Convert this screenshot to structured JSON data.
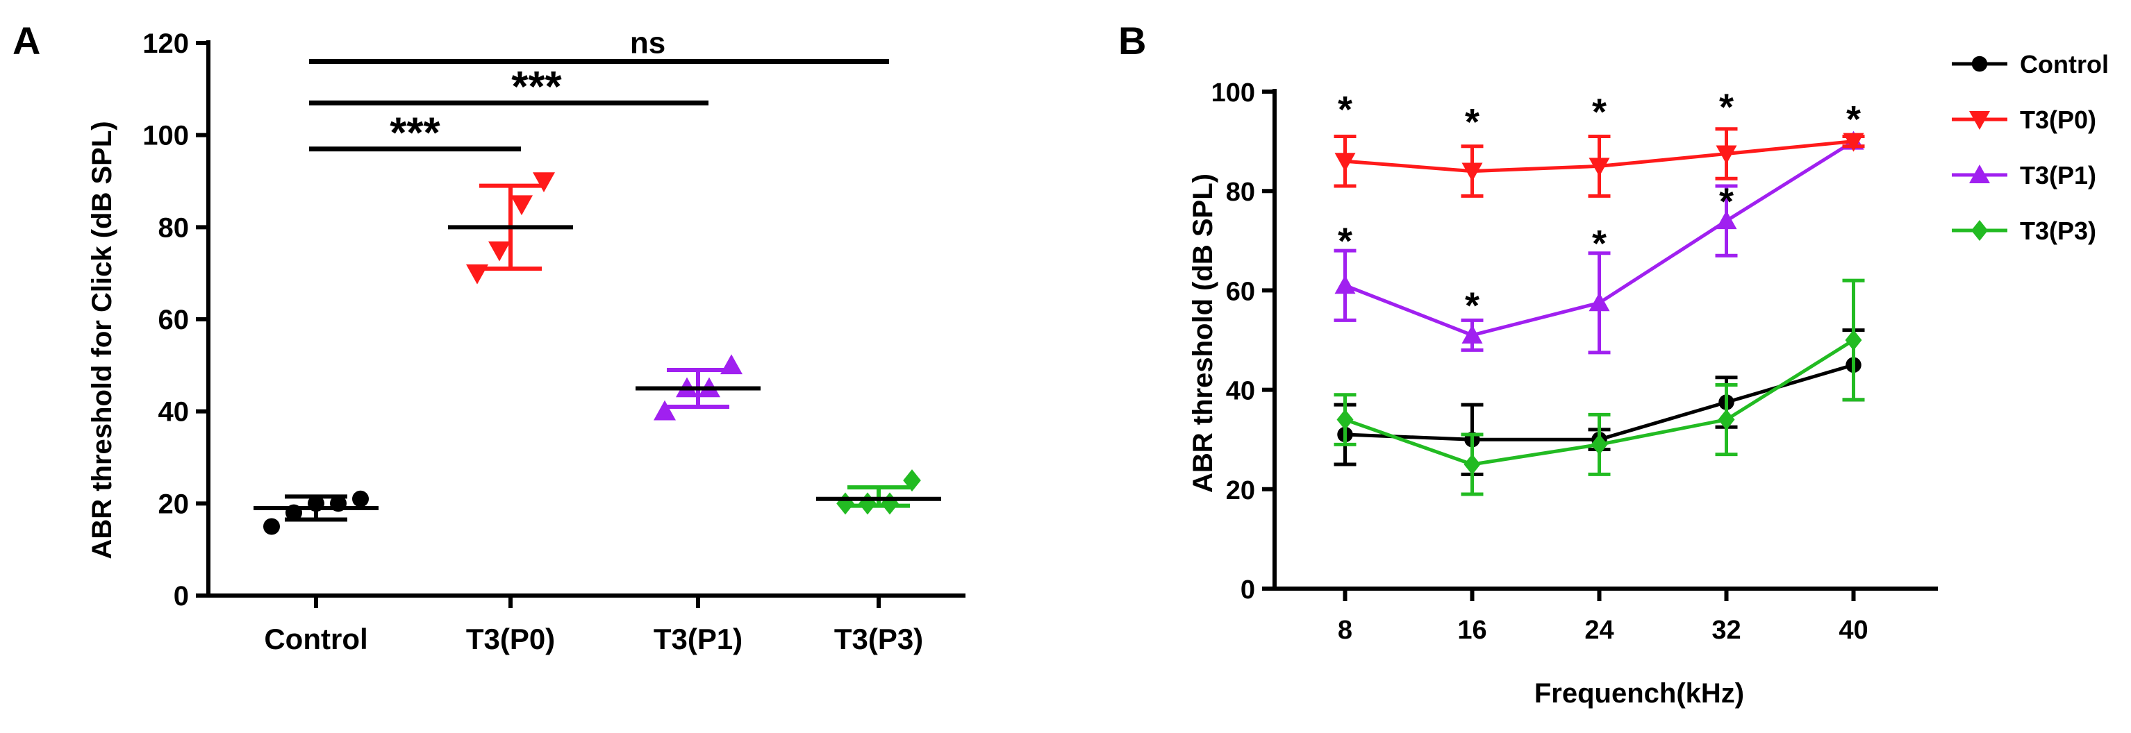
{
  "colors": {
    "control": "#000000",
    "p0": "#ff1a1a",
    "p1": "#a020f0",
    "p3": "#22bb22"
  },
  "chart_data": [
    {
      "panel": "A",
      "type": "scatter",
      "title": "",
      "xlabel": "",
      "ylabel": "ABR threshold for Click (dB SPL)",
      "ylim": [
        0,
        120
      ],
      "yticks": [
        "0",
        "20",
        "40",
        "60",
        "80",
        "100",
        "120"
      ],
      "categories": [
        "Control",
        "T3(P0)",
        "T3(P1)",
        "T3(P3)"
      ],
      "groups": [
        {
          "name": "Control",
          "color_key": "control",
          "marker": "circle",
          "mean": 19,
          "sd_low": 16.5,
          "sd_high": 21.5,
          "points": [
            15,
            18,
            20,
            20,
            21
          ]
        },
        {
          "name": "T3(P0)",
          "color_key": "p0",
          "marker": "triangle-down",
          "mean": 80,
          "sd_low": 71,
          "sd_high": 89,
          "points": [
            70,
            75,
            85,
            90
          ]
        },
        {
          "name": "T3(P1)",
          "color_key": "p1",
          "marker": "triangle-up",
          "mean": 45,
          "sd_low": 41,
          "sd_high": 49,
          "points": [
            40,
            45,
            45,
            50
          ]
        },
        {
          "name": "T3(P3)",
          "color_key": "p3",
          "marker": "diamond",
          "mean": 21,
          "sd_low": 19.5,
          "sd_high": 23.5,
          "points": [
            20,
            20,
            20,
            25
          ]
        }
      ],
      "significance": [
        {
          "label": "***",
          "from": "Control",
          "to": "T3(P0)",
          "y": 97
        },
        {
          "label": "***",
          "from": "Control",
          "to": "T3(P1)",
          "y": 107
        },
        {
          "label": "ns",
          "from": "Control",
          "to": "T3(P3)",
          "y": 116
        }
      ]
    },
    {
      "panel": "B",
      "type": "line",
      "title": "",
      "xlabel": "Frequench(kHz)",
      "ylabel": "ABR threshold (dB SPL)",
      "ylim": [
        0,
        100
      ],
      "yticks": [
        "0",
        "20",
        "40",
        "60",
        "80",
        "100"
      ],
      "x": [
        8,
        16,
        24,
        32,
        40
      ],
      "xticks": [
        "8",
        "16",
        "24",
        "32",
        "40"
      ],
      "legend_position": "top-right",
      "series": [
        {
          "name": "Control",
          "color_key": "control",
          "marker": "circle",
          "values": [
            31,
            30,
            30,
            37.5,
            45
          ],
          "err": [
            6,
            7,
            2,
            5,
            7
          ]
        },
        {
          "name": "T3(P0)",
          "color_key": "p0",
          "marker": "triangle-down",
          "values": [
            86,
            84,
            85,
            87.5,
            90
          ],
          "err": [
            5,
            5,
            6,
            5,
            1
          ]
        },
        {
          "name": "T3(P1)",
          "color_key": "p1",
          "marker": "triangle-up",
          "values": [
            61,
            51,
            57.5,
            74,
            90
          ],
          "err": [
            7,
            3,
            10,
            7,
            1
          ]
        },
        {
          "name": "T3(P3)",
          "color_key": "p3",
          "marker": "diamond",
          "values": [
            34,
            25,
            29,
            34,
            50
          ],
          "err": [
            5,
            6,
            6,
            7,
            12
          ]
        }
      ],
      "annotations": [
        {
          "label": "*",
          "x": 8,
          "y": 97.5
        },
        {
          "label": "*",
          "x": 16,
          "y": 95
        },
        {
          "label": "*",
          "x": 24,
          "y": 97
        },
        {
          "label": "*",
          "x": 32,
          "y": 98
        },
        {
          "label": "*",
          "x": 40,
          "y": 95.5
        },
        {
          "label": "*",
          "x": 8,
          "y": 71
        },
        {
          "label": "*",
          "x": 16,
          "y": 58
        },
        {
          "label": "*",
          "x": 24,
          "y": 70.5
        },
        {
          "label": "*",
          "x": 32,
          "y": 79
        }
      ]
    }
  ]
}
